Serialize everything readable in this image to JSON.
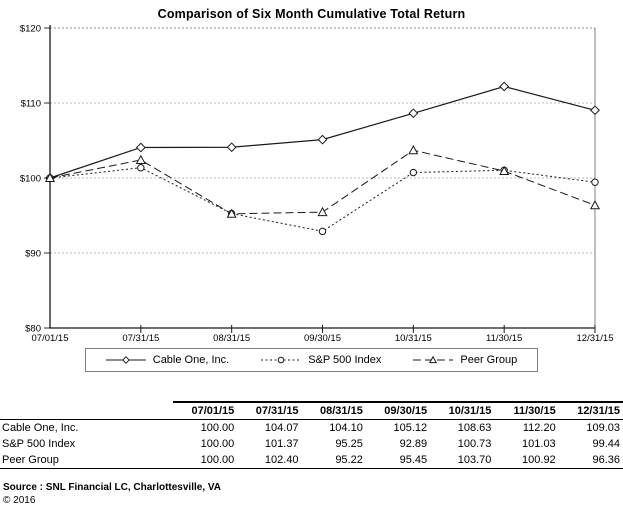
{
  "title": "Comparison of Six Month Cumulative Total Return",
  "chart_data": {
    "type": "line",
    "x": [
      "07/01/15",
      "07/31/15",
      "08/31/15",
      "09/30/15",
      "10/31/15",
      "11/30/15",
      "12/31/15"
    ],
    "series": [
      {
        "name": "Cable One, Inc.",
        "values": [
          100.0,
          104.07,
          104.1,
          105.12,
          108.63,
          112.2,
          109.03
        ],
        "marker": "diamond",
        "dash": "solid"
      },
      {
        "name": "S&P 500 Index",
        "values": [
          100.0,
          101.37,
          95.25,
          92.89,
          100.73,
          101.03,
          99.44
        ],
        "marker": "circle",
        "dash": "dotted"
      },
      {
        "name": "Peer Group",
        "values": [
          100.0,
          102.4,
          95.22,
          95.45,
          103.7,
          100.92,
          96.36
        ],
        "marker": "triangle",
        "dash": "dashed"
      }
    ],
    "ylim": [
      80,
      120
    ],
    "ytick_values": [
      80,
      90,
      100,
      110,
      120
    ],
    "ytick_labels": [
      "$80",
      "$90",
      "$100",
      "$110",
      "$120"
    ],
    "xlabel": "",
    "ylabel": "",
    "grid": "horizontal-dotted",
    "legend_position": "bottom",
    "line_color": "#1a1a1a",
    "grid_color": "#b8b8b8"
  },
  "table": {
    "columns": [
      "07/01/15",
      "07/31/15",
      "08/31/15",
      "09/30/15",
      "10/31/15",
      "11/30/15",
      "12/31/15"
    ],
    "rows": [
      {
        "label": "Cable One, Inc.",
        "values": [
          "100.00",
          "104.07",
          "104.10",
          "105.12",
          "108.63",
          "112.20",
          "109.03"
        ]
      },
      {
        "label": "S&P 500 Index",
        "values": [
          "100.00",
          "101.37",
          "95.25",
          "92.89",
          "100.73",
          "101.03",
          "99.44"
        ]
      },
      {
        "label": "Peer Group",
        "values": [
          "100.00",
          "102.40",
          "95.22",
          "95.45",
          "103.70",
          "100.92",
          "96.36"
        ]
      }
    ]
  },
  "footer": {
    "source_label": "Source :",
    "source_text": "SNL Financial LC, Charlottesville, VA",
    "copyright": "© 2016"
  }
}
